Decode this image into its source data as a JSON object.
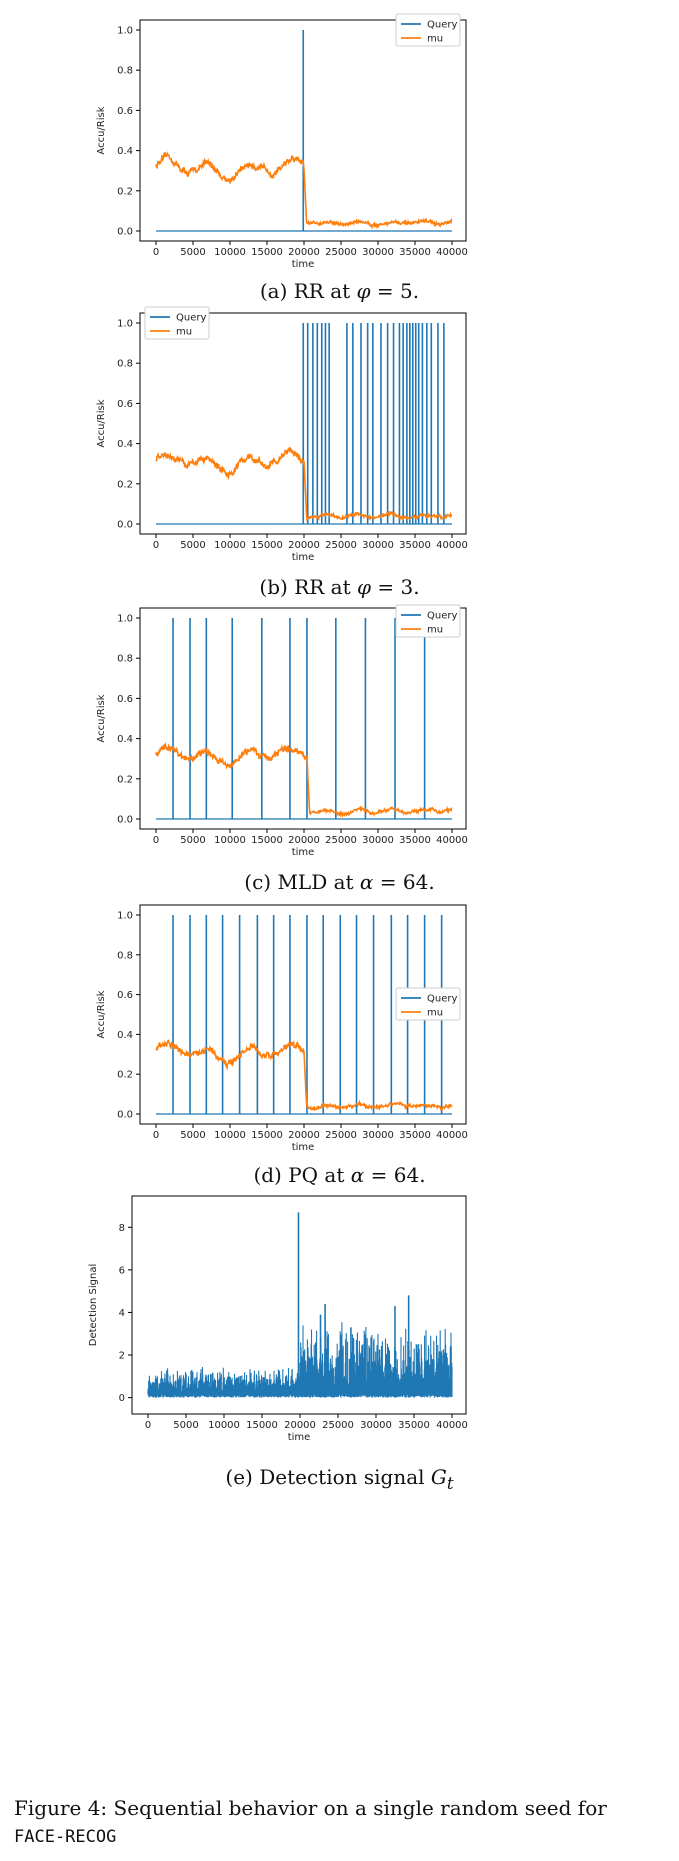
{
  "colors": {
    "query": "#1f77b4",
    "mu": "#ff7f0e",
    "detection": "#1f77b4"
  },
  "figure_caption": {
    "text": "Figure 4: Sequential behavior on a single random seed for",
    "dataset": "FACE-RECOG"
  },
  "panels": [
    {
      "id": "a",
      "caption": {
        "prefix": "(a) RR at ",
        "symbol": "φ",
        "suffix": " = 5."
      },
      "legend_position": "top-right",
      "chart_data": {
        "type": "line",
        "xlabel": "time",
        "ylabel": "Accu/Risk",
        "xlim": [
          0,
          40000
        ],
        "ylim": [
          0,
          1
        ],
        "xticks": [
          "0",
          "5000",
          "10000",
          "15000",
          "20000",
          "25000",
          "30000",
          "35000",
          "40000"
        ],
        "yticks": [
          "0.0",
          "0.2",
          "0.4",
          "0.6",
          "0.8",
          "1.0"
        ],
        "series": [
          {
            "name": "Query",
            "kind": "query_spikes",
            "spike_times": [
              19900
            ]
          },
          {
            "name": "mu",
            "kind": "risk_curve",
            "pre_level": 0.31,
            "post_level": 0.04,
            "change_at": 20000
          }
        ]
      }
    },
    {
      "id": "b",
      "caption": {
        "prefix": "(b) RR at ",
        "symbol": "φ",
        "suffix": " = 3."
      },
      "legend_position": "top-left",
      "chart_data": {
        "type": "line",
        "xlabel": "time",
        "ylabel": "Accu/Risk",
        "xlim": [
          0,
          40000
        ],
        "ylim": [
          0,
          1
        ],
        "xticks": [
          "0",
          "5000",
          "10000",
          "15000",
          "20000",
          "25000",
          "30000",
          "35000",
          "40000"
        ],
        "yticks": [
          "0.0",
          "0.2",
          "0.4",
          "0.6",
          "0.8",
          "1.0"
        ],
        "series": [
          {
            "name": "Query",
            "kind": "query_spikes",
            "spike_times": [
              19900,
              20500,
              21200,
              21800,
              22400,
              22900,
              23400,
              25800,
              26600,
              27700,
              28600,
              29300,
              30400,
              31300,
              32100,
              32900,
              33400,
              33900,
              34300,
              34700,
              35100,
              35500,
              36000,
              36600,
              37200,
              38100,
              38900
            ]
          },
          {
            "name": "mu",
            "kind": "risk_curve",
            "pre_level": 0.31,
            "post_level": 0.04,
            "change_at": 20000
          }
        ]
      }
    },
    {
      "id": "c",
      "caption": {
        "prefix": "(c) MLD at ",
        "symbol": "α",
        "suffix": " = 64."
      },
      "legend_position": "top-right",
      "chart_data": {
        "type": "line",
        "xlabel": "time",
        "ylabel": "Accu/Risk",
        "xlim": [
          0,
          40000
        ],
        "ylim": [
          0,
          1
        ],
        "xticks": [
          "0",
          "5000",
          "10000",
          "15000",
          "20000",
          "25000",
          "30000",
          "35000",
          "40000"
        ],
        "yticks": [
          "0.0",
          "0.2",
          "0.4",
          "0.6",
          "0.8",
          "1.0"
        ],
        "series": [
          {
            "name": "Query",
            "kind": "query_spikes",
            "spike_times": [
              2300,
              4600,
              6800,
              10300,
              14300,
              18100,
              20400,
              24300,
              28300,
              32300,
              36300
            ]
          },
          {
            "name": "mu",
            "kind": "risk_curve",
            "pre_level": 0.31,
            "post_level": 0.04,
            "change_at": 20400
          }
        ]
      }
    },
    {
      "id": "d",
      "caption": {
        "prefix": "(d) PQ at ",
        "symbol": "α",
        "suffix": " = 64."
      },
      "legend_position": "center-right",
      "chart_data": {
        "type": "line",
        "xlabel": "time",
        "ylabel": "Accu/Risk",
        "xlim": [
          0,
          40000
        ],
        "ylim": [
          0,
          1
        ],
        "xticks": [
          "0",
          "5000",
          "10000",
          "15000",
          "20000",
          "25000",
          "30000",
          "35000",
          "40000"
        ],
        "yticks": [
          "0.0",
          "0.2",
          "0.4",
          "0.6",
          "0.8",
          "1.0"
        ],
        "series": [
          {
            "name": "Query",
            "kind": "query_spikes",
            "spike_times": [
              2300,
              4600,
              6800,
              9000,
              11300,
              13700,
              15900,
              18100,
              20400,
              22600,
              24900,
              27100,
              29400,
              31800,
              34000,
              36300,
              38600
            ]
          },
          {
            "name": "mu",
            "kind": "risk_curve",
            "pre_level": 0.31,
            "post_level": 0.04,
            "change_at": 20000
          }
        ]
      }
    },
    {
      "id": "e",
      "caption": {
        "prefix": "(e) Detection signal ",
        "symbol": "G",
        "sub": "t",
        "suffix": ""
      },
      "legend_position": "none",
      "chart_data": {
        "type": "area",
        "xlabel": "time",
        "ylabel": "Detection Signal",
        "xlim": [
          0,
          40000
        ],
        "ylim": [
          -0.3,
          9
        ],
        "xticks": [
          "0",
          "5000",
          "10000",
          "15000",
          "20000",
          "25000",
          "30000",
          "35000",
          "40000"
        ],
        "yticks": [
          "0",
          "2",
          "4",
          "6",
          "8"
        ],
        "series": [
          {
            "name": "G_t",
            "kind": "detection",
            "pre_max": 1.3,
            "post_max": 3.2,
            "change_at": 20000,
            "peaks": [
              [
                19800,
                8.7
              ],
              [
                23300,
                4.4
              ],
              [
                34300,
                4.8
              ],
              [
                32500,
                4.3
              ],
              [
                26700,
                3.3
              ],
              [
                22700,
                3.9
              ]
            ]
          }
        ]
      }
    }
  ]
}
